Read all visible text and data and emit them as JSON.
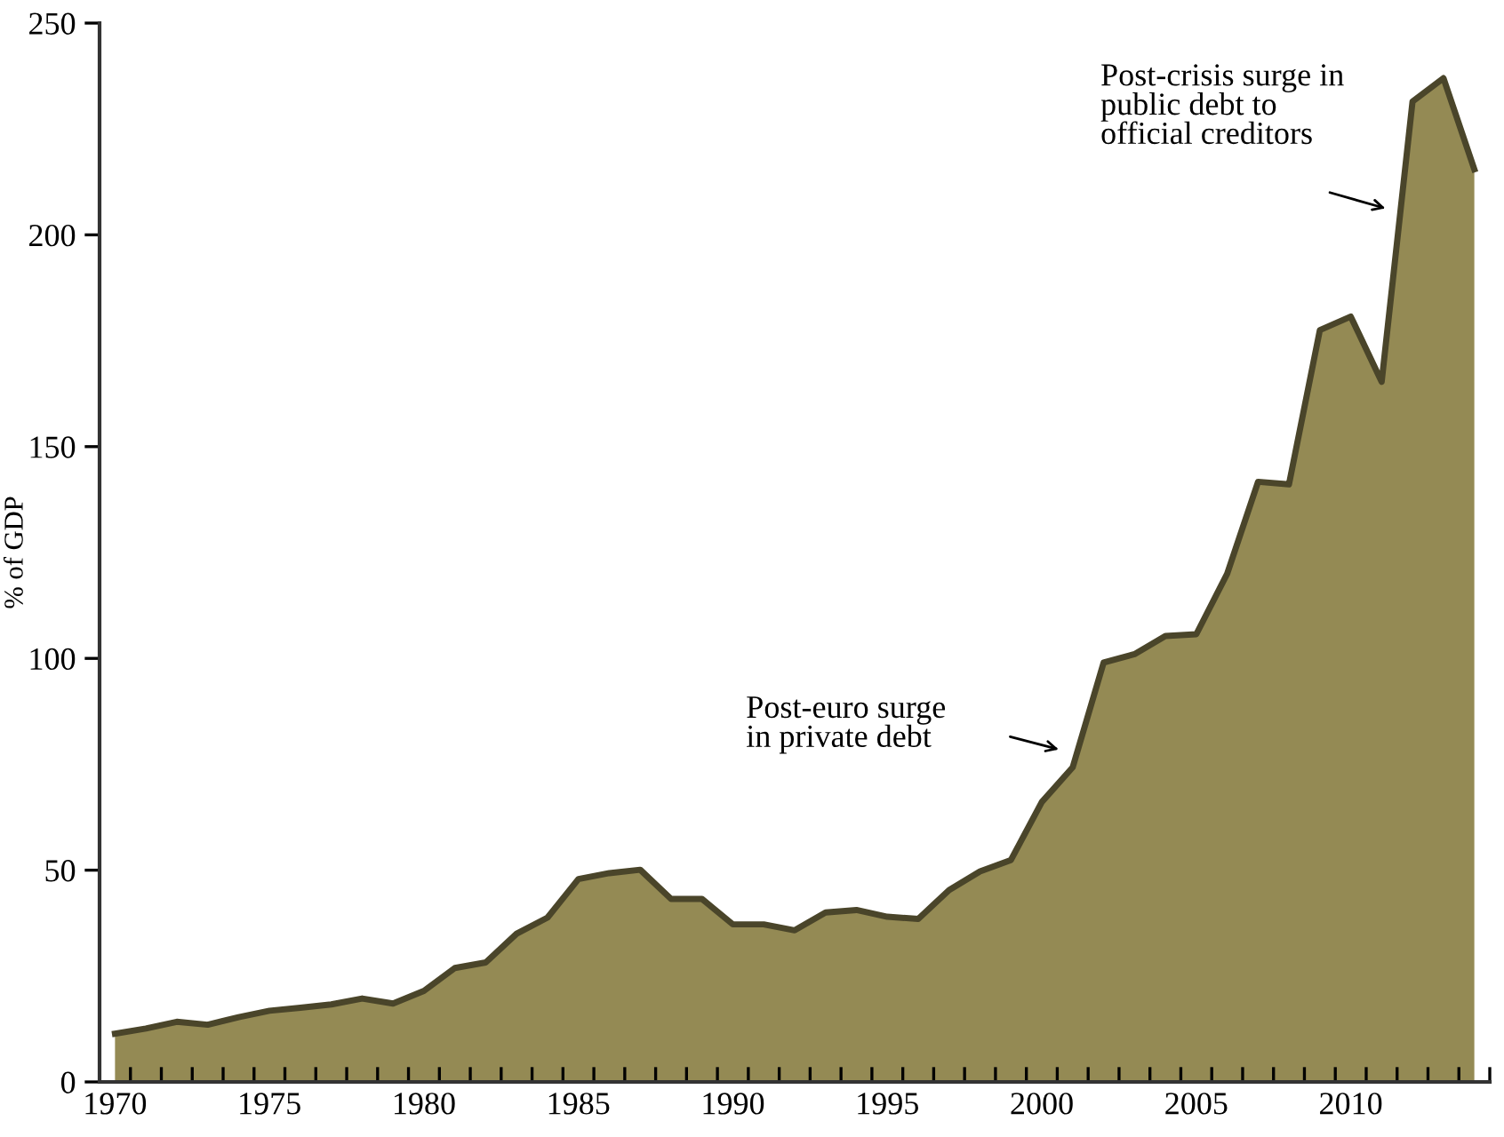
{
  "chart_data": {
    "type": "area",
    "ylabel": "% of GDP",
    "x": [
      1970,
      1971,
      1972,
      1973,
      1974,
      1975,
      1976,
      1977,
      1978,
      1979,
      1980,
      1981,
      1982,
      1983,
      1984,
      1985,
      1986,
      1987,
      1988,
      1989,
      1990,
      1991,
      1992,
      1993,
      1994,
      1995,
      1996,
      1997,
      1998,
      1999,
      2000,
      2001,
      2002,
      2003,
      2004,
      2005,
      2006,
      2007,
      2008,
      2009,
      2010,
      2011,
      2012,
      2013,
      2014
    ],
    "series": [
      {
        "color": "#948a54",
        "values": [
          11.4,
          12.6,
          14.2,
          13.5,
          15.3,
          16.8,
          17.5,
          18.3,
          19.7,
          18.5,
          21.5,
          26.9,
          28.2,
          35,
          38.8,
          47.9,
          49.3,
          50.1,
          43.2,
          43.2,
          37.2,
          37.2,
          35.8,
          40,
          40.6,
          39,
          38.5,
          45.3,
          49.7,
          52.4,
          66.1,
          74.3,
          99,
          101,
          105.3,
          105.7,
          120,
          141.7,
          141.1,
          177.5,
          180.7,
          165.3,
          231.5,
          237,
          215.5
        ]
      }
    ],
    "xlim": [
      1969.5,
      2014.5
    ],
    "xticks": [
      1970,
      1975,
      1980,
      1985,
      1990,
      1995,
      2000,
      2005,
      2010,
      {
        "value": 1969.5,
        "label": null
      },
      {
        "value": 1970.5,
        "label": null
      },
      {
        "value": 1971.5,
        "label": null
      },
      {
        "value": 1972.5,
        "label": null
      },
      {
        "value": 1973.5,
        "label": null
      },
      {
        "value": 1974.5,
        "label": null
      },
      {
        "value": 1975.5,
        "label": null
      },
      {
        "value": 1976.5,
        "label": null
      },
      {
        "value": 1977.5,
        "label": null
      },
      {
        "value": 1978.5,
        "label": null
      },
      {
        "value": 1979.5,
        "label": null
      },
      {
        "value": 1980.5,
        "label": null
      },
      {
        "value": 1981.5,
        "label": null
      },
      {
        "value": 1982.5,
        "label": null
      },
      {
        "value": 1983.5,
        "label": null
      },
      {
        "value": 1984.5,
        "label": null
      },
      {
        "value": 1985.5,
        "label": null
      },
      {
        "value": 1986.5,
        "label": null
      },
      {
        "value": 1987.5,
        "label": null
      },
      {
        "value": 1988.5,
        "label": null
      },
      {
        "value": 1989.5,
        "label": null
      },
      {
        "value": 1990.5,
        "label": null
      },
      {
        "value": 1991.5,
        "label": null
      },
      {
        "value": 1992.5,
        "label": null
      },
      {
        "value": 1993.5,
        "label": null
      },
      {
        "value": 1994.5,
        "label": null
      },
      {
        "value": 1995.5,
        "label": null
      },
      {
        "value": 1996.5,
        "label": null
      },
      {
        "value": 1997.5,
        "label": null
      },
      {
        "value": 1998.5,
        "label": null
      },
      {
        "value": 1999.5,
        "label": null
      },
      {
        "value": 2000.5,
        "label": null
      },
      {
        "value": 2001.5,
        "label": null
      },
      {
        "value": 2002.5,
        "label": null
      },
      {
        "value": 2003.5,
        "label": null
      },
      {
        "value": 2004.5,
        "label": null
      },
      {
        "value": 2005.5,
        "label": null
      },
      {
        "value": 2006.5,
        "label": null
      },
      {
        "value": 2007.5,
        "label": null
      },
      {
        "value": 2008.5,
        "label": null
      },
      {
        "value": 2009.5,
        "label": null
      },
      {
        "value": 2010.5,
        "label": null
      },
      {
        "value": 2011.5,
        "label": null
      },
      {
        "value": 2012.5,
        "label": null
      },
      {
        "value": 2013.5,
        "label": null
      },
      {
        "value": 2014.5,
        "label": null
      }
    ],
    "ylim": [
      0,
      250
    ],
    "yticks": [
      0,
      50,
      100,
      150,
      200,
      250
    ],
    "grid": false,
    "legend": false,
    "annotations": [
      "Post-euro surge\nin private debt",
      "Post-crisis surge in\npublic debt to\nofficial creditors"
    ]
  }
}
